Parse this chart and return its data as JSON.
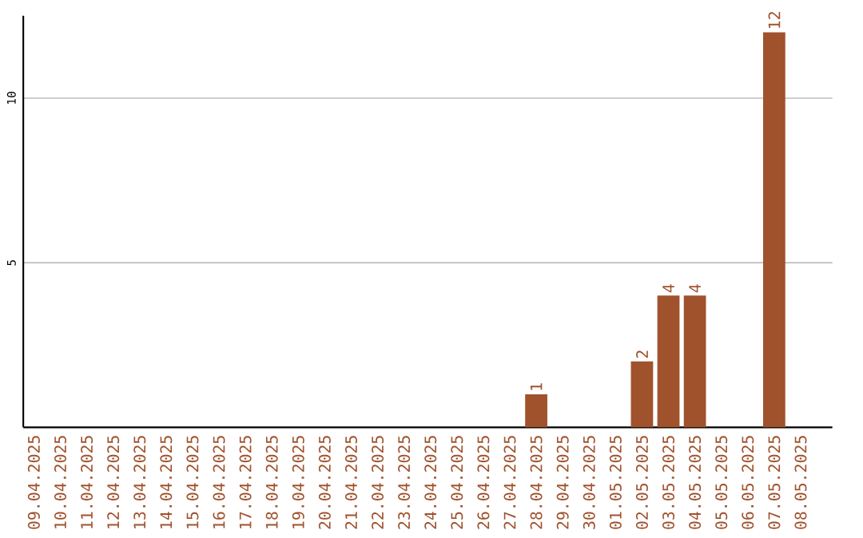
{
  "chart_data": {
    "type": "bar",
    "categories": [
      "09.04.2025",
      "10.04.2025",
      "11.04.2025",
      "12.04.2025",
      "13.04.2025",
      "14.04.2025",
      "15.04.2025",
      "16.04.2025",
      "17.04.2025",
      "18.04.2025",
      "19.04.2025",
      "20.04.2025",
      "21.04.2025",
      "22.04.2025",
      "23.04.2025",
      "24.04.2025",
      "25.04.2025",
      "26.04.2025",
      "27.04.2025",
      "28.04.2025",
      "29.04.2025",
      "30.04.2025",
      "01.05.2025",
      "02.05.2025",
      "03.05.2025",
      "04.05.2025",
      "05.05.2025",
      "06.05.2025",
      "07.05.2025",
      "08.05.2025"
    ],
    "values": [
      0,
      0,
      0,
      0,
      0,
      0,
      0,
      0,
      0,
      0,
      0,
      0,
      0,
      0,
      0,
      0,
      0,
      0,
      0,
      1,
      0,
      0,
      0,
      2,
      4,
      4,
      0,
      0,
      12,
      0
    ],
    "value_labels": [
      null,
      null,
      null,
      null,
      null,
      null,
      null,
      null,
      null,
      null,
      null,
      null,
      null,
      null,
      null,
      null,
      null,
      null,
      null,
      "1",
      null,
      null,
      null,
      "2",
      "4",
      "4",
      null,
      null,
      "12",
      null
    ],
    "color": "#a0522d",
    "ylim": [
      0,
      12.5
    ],
    "yticks": [
      5,
      10
    ],
    "grid": "y"
  }
}
